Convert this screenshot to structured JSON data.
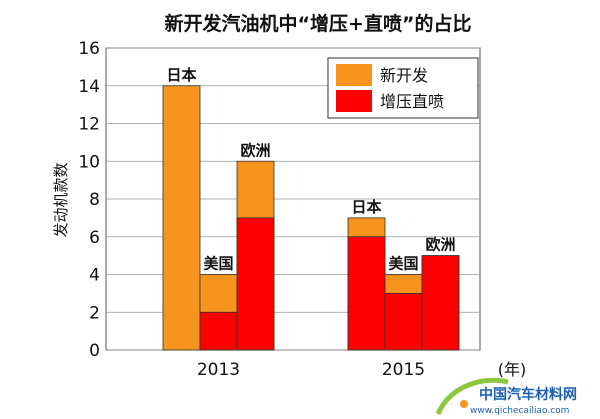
{
  "chart_data": {
    "type": "bar",
    "title": "新开发汽油机中“增压+直喷”的占比",
    "ylabel": "发动机款数",
    "x_unit": "(年)",
    "ylim": [
      0,
      16
    ],
    "yticks": [
      0,
      2,
      4,
      6,
      8,
      10,
      12,
      14,
      16
    ],
    "grid": true,
    "legend_position": "top-right",
    "categories": [
      "2013",
      "2015"
    ],
    "series_names": [
      "新开发",
      "增压直喷"
    ],
    "colors": {
      "新开发": "#f7941d",
      "增压直喷": "#ff0000"
    },
    "groups": [
      {
        "year": "2013",
        "bars": [
          {
            "label": "日本",
            "新开发": 14,
            "增压直喷": 0
          },
          {
            "label": "美国",
            "新开发": 4,
            "增压直喷": 2
          },
          {
            "label": "欧洲",
            "新开发": 10,
            "增压直喷": 7
          }
        ]
      },
      {
        "year": "2015",
        "bars": [
          {
            "label": "日本",
            "新开发": 7,
            "增压直喷": 6
          },
          {
            "label": "美国",
            "新开发": 4,
            "增压直喷": 3
          },
          {
            "label": "欧洲",
            "新开发": 5,
            "增压直喷": 5
          }
        ]
      }
    ]
  },
  "watermark": {
    "cn": "中国汽车材料网",
    "url": "www.qichecailiao.com"
  }
}
